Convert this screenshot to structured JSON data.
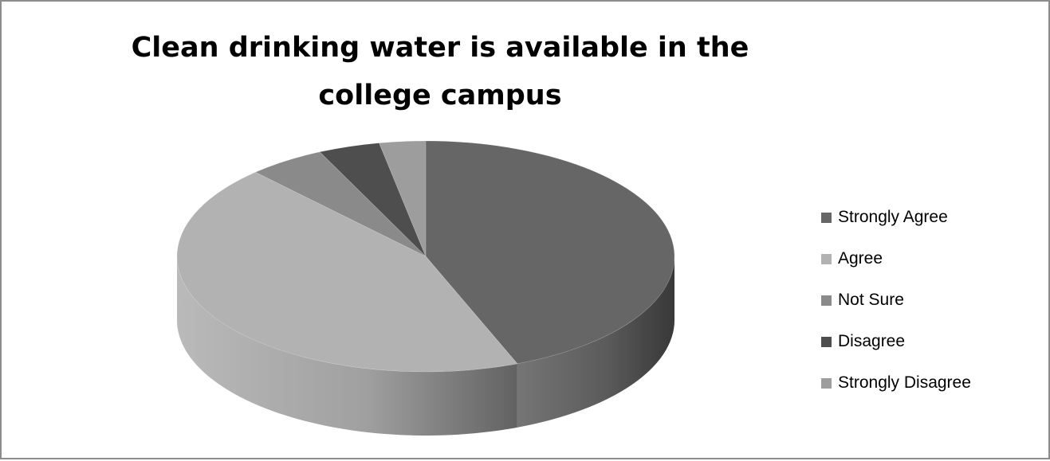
{
  "chart_data": {
    "type": "pie",
    "title": "Clean drinking water is available in the college campus",
    "categories": [
      "Strongly Agree",
      "Agree",
      "Not Sure",
      "Disagree",
      "Strongly Disagree"
    ],
    "values": [
      44,
      44,
      5,
      4,
      3
    ],
    "colors": [
      "#666666",
      "#b2b2b2",
      "#8a8a8a",
      "#4e4e4e",
      "#9d9d9d"
    ],
    "legend_position": "right",
    "style": "3d"
  }
}
